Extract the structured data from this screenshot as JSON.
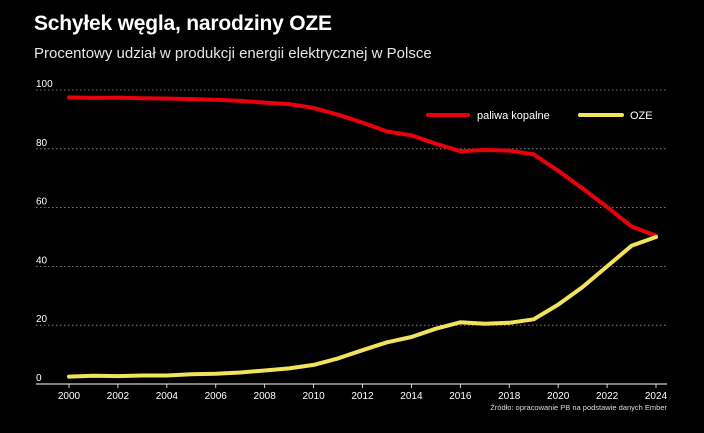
{
  "header": {
    "title": "Schyłek węgla, narodziny OZE",
    "subtitle": "Procentowy udział w produkcji energii elektrycznej w Polsce"
  },
  "source": "Źródło: opracowanie PB na podstawie danych Ember",
  "colors": {
    "background": "#000000",
    "fossil": "#e8000b",
    "renewables": "#f2e35c",
    "grid": "#9a9a9a"
  },
  "chart_data": {
    "type": "line",
    "title": "Schyłek węgla, narodziny OZE",
    "subtitle": "Procentowy udział w produkcji energii elektrycznej w Polsce",
    "xlabel": "",
    "ylabel": "",
    "xlim": [
      2000,
      2024
    ],
    "ylim": [
      0,
      100
    ],
    "x_ticks": [
      2000,
      2002,
      2004,
      2006,
      2008,
      2010,
      2012,
      2014,
      2016,
      2018,
      2020,
      2022,
      2024
    ],
    "y_ticks": [
      0,
      20,
      40,
      60,
      80,
      100
    ],
    "grid": "horizontal dotted",
    "legend_position": "top-right",
    "x": [
      2000,
      2001,
      2002,
      2003,
      2004,
      2005,
      2006,
      2007,
      2008,
      2009,
      2010,
      2011,
      2012,
      2013,
      2014,
      2015,
      2016,
      2017,
      2018,
      2019,
      2020,
      2021,
      2022,
      2023,
      2024
    ],
    "series": [
      {
        "name": "paliwa kopalne",
        "color": "#e8000b",
        "values": [
          97.5,
          97.3,
          97.4,
          97.2,
          97.1,
          96.9,
          96.7,
          96.3,
          95.7,
          95.2,
          93.9,
          91.6,
          88.9,
          85.9,
          84.6,
          81.7,
          79.2,
          79.6,
          79.4,
          78.1,
          72.5,
          66.5,
          60.2,
          53.6,
          50.4
        ]
      },
      {
        "name": "OZE",
        "color": "#f2e35c",
        "values": [
          2.5,
          2.8,
          2.7,
          2.9,
          2.9,
          3.3,
          3.5,
          3.9,
          4.6,
          5.3,
          6.5,
          8.7,
          11.5,
          14.2,
          16.0,
          18.8,
          21.0,
          20.5,
          20.8,
          22.0,
          27.0,
          33.0,
          40.0,
          47.0,
          50.0
        ]
      }
    ]
  }
}
